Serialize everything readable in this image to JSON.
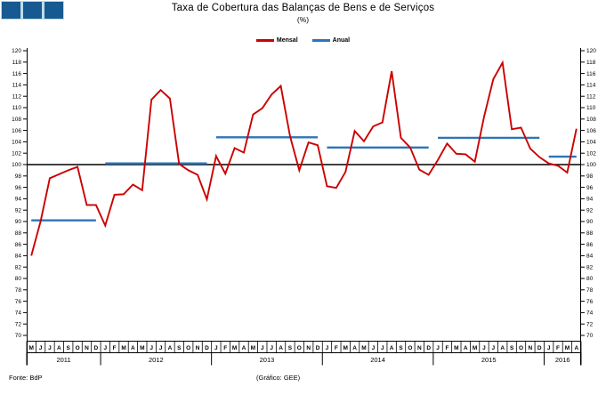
{
  "logo": {
    "square_color": "#175a91",
    "gap_color": "#bfdce8"
  },
  "title": "Taxa de Cobertura das Balanças de Bens e de Serviços",
  "subtitle": "(%)",
  "legend": [
    {
      "label": "Mensal",
      "color": "#cc0000"
    },
    {
      "label": "Anual",
      "color": "#2e75b6"
    }
  ],
  "footer": {
    "source": "Fonte: BdP",
    "credit": "(Gráfico: GEE)"
  },
  "chart_data": {
    "type": "line",
    "title": "Taxa de Cobertura das Balanças de Bens e de Serviços (%)",
    "xlabel": "",
    "ylabel": "",
    "ylim": [
      70,
      120
    ],
    "ytick_step": 2,
    "reference_line": 100,
    "grid": false,
    "legend_position": "top-center",
    "mensal_color": "#cc0000",
    "anual_color": "#2e75b6",
    "reference_color": "#000000",
    "years": [
      {
        "label": "2011",
        "anual": 90.2,
        "months": [
          "M",
          "J",
          "J",
          "A",
          "S",
          "O",
          "N",
          "D"
        ]
      },
      {
        "label": "2012",
        "anual": 100.2,
        "months": [
          "J",
          "F",
          "M",
          "A",
          "M",
          "J",
          "J",
          "A",
          "S",
          "O",
          "N",
          "D"
        ]
      },
      {
        "label": "2013",
        "anual": 104.8,
        "months": [
          "J",
          "F",
          "M",
          "A",
          "M",
          "J",
          "J",
          "A",
          "S",
          "O",
          "N",
          "D"
        ]
      },
      {
        "label": "2014",
        "anual": 103.0,
        "months": [
          "J",
          "F",
          "M",
          "A",
          "M",
          "J",
          "J",
          "A",
          "S",
          "O",
          "N",
          "D"
        ]
      },
      {
        "label": "2015",
        "anual": 104.7,
        "months": [
          "J",
          "F",
          "M",
          "A",
          "M",
          "J",
          "J",
          "A",
          "S",
          "O",
          "N",
          "D"
        ]
      },
      {
        "label": "2016",
        "anual": 101.4,
        "months": [
          "J",
          "F",
          "M",
          "A"
        ]
      }
    ],
    "series": [
      {
        "name": "Mensal",
        "values": [
          84.0,
          90.0,
          97.6,
          98.3,
          99.0,
          99.6,
          92.9,
          92.9,
          89.3,
          94.7,
          94.8,
          96.5,
          95.5,
          111.4,
          113.1,
          111.6,
          100.1,
          99.0,
          98.2,
          93.9,
          101.5,
          98.4,
          102.9,
          102.1,
          108.8,
          109.9,
          112.3,
          113.8,
          105.0,
          99.0,
          103.9,
          103.4,
          96.2,
          95.9,
          98.7,
          105.9,
          104.1,
          106.7,
          107.4,
          116.4,
          104.7,
          103.0,
          99.1,
          98.2,
          100.8,
          103.7,
          101.9,
          101.8,
          100.5,
          108.4,
          115.0,
          117.9,
          106.2,
          106.5,
          102.8,
          101.3,
          100.2,
          99.8,
          98.6,
          106.3
        ]
      },
      {
        "name": "Anual",
        "per_year_values": {
          "2011": 90.2,
          "2012": 100.2,
          "2013": 104.8,
          "2014": 103.0,
          "2015": 104.7,
          "2016": 101.4
        }
      }
    ]
  }
}
